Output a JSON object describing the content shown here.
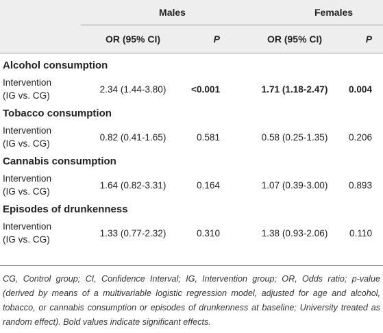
{
  "header": {
    "group_males": "Males",
    "group_females": "Females",
    "col_or": "OR (95% CI)",
    "col_p": "P"
  },
  "sections": [
    {
      "title": "Alcohol consumption",
      "label_line1": "Intervention",
      "label_line2": "(IG vs. CG)",
      "males_or": "2.34 (1.44-3.80)",
      "males_p": "<0.001",
      "females_or": "1.71 (1.18-2.47)",
      "females_p": "0.004"
    },
    {
      "title": "Tobacco consumption",
      "label_line1": "Intervention",
      "label_line2": "(IG vs. CG)",
      "males_or": "0.82 (0.41-1.65)",
      "males_p": "0.581",
      "females_or": "0.58 (0.25-1.35)",
      "females_p": "0.206"
    },
    {
      "title": "Cannabis consumption",
      "label_line1": "Intervention",
      "label_line2": "(IG vs. CG)",
      "males_or": "1.64 (0.82-3.31)",
      "males_p": "0.164",
      "females_or": "1.07 (0.39-3.00)",
      "females_p": "0.893"
    },
    {
      "title": "Episodes of drunkenness",
      "label_line1": "Intervention",
      "label_line2": "(IG vs. CG)",
      "males_or": "1.33 (0.77-2.32)",
      "males_p": "0.310",
      "females_or": "1.38 (0.93-2.06)",
      "females_p": "0.110"
    }
  ],
  "footnote": "CG, Control group; CI, Confidence Interval; IG, Intervention group; OR, Odds ratio; p-value (derived by means of a multivariable logistic regression model, adjusted for age and alcohol, tobacco, or cannabis consumption or episodes of drunkenness at baseline; University treated as random effect). Bold values indicate significant effects."
}
